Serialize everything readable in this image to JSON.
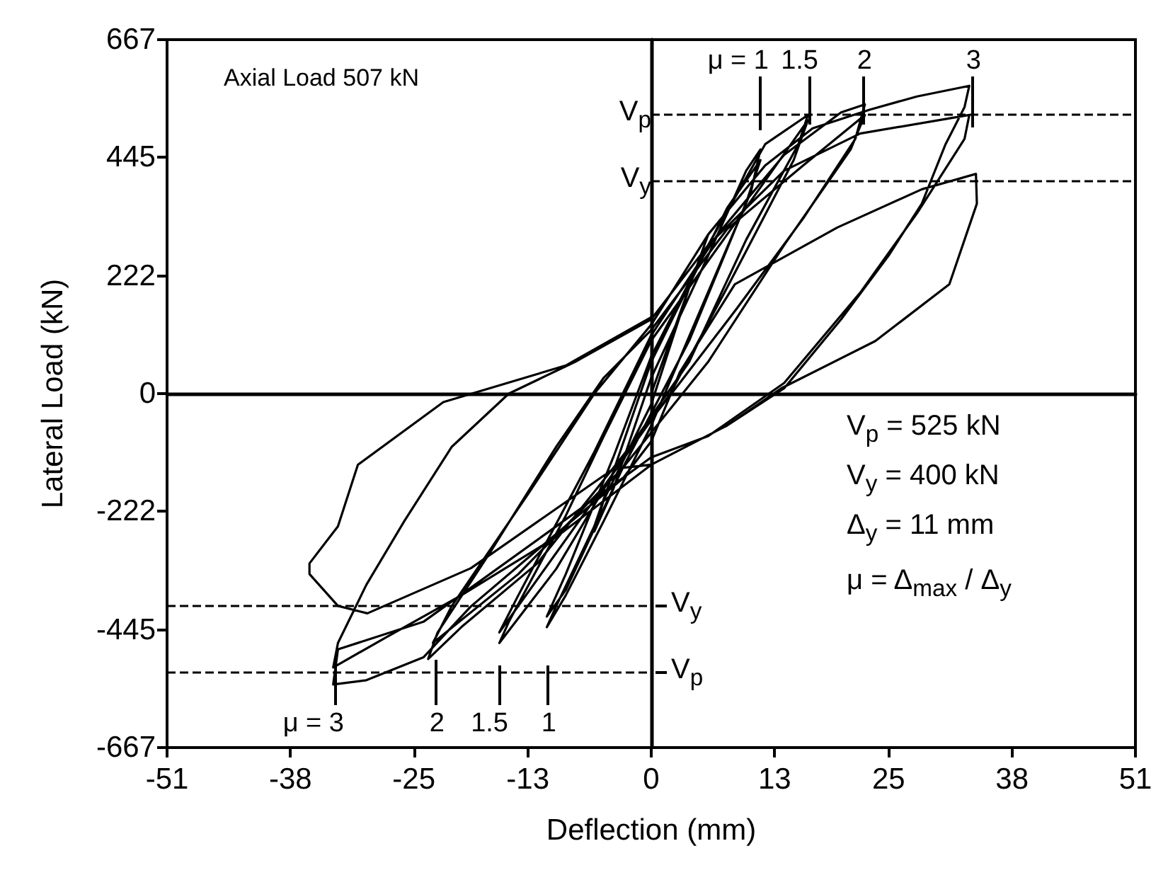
{
  "chart_data": {
    "type": "line",
    "xlabel": "Deflection (mm)",
    "ylabel": "Lateral Load (kN)",
    "xlim": [
      -51,
      51
    ],
    "xticks": [
      -51,
      -38,
      -25,
      -13,
      0,
      13,
      25,
      38,
      51
    ],
    "ylim": [
      -667,
      667
    ],
    "yticks": [
      -667,
      -445,
      -222,
      0,
      222,
      445,
      667
    ],
    "marker": "none",
    "line_style": "solid",
    "series": [
      {
        "color": "#000000",
        "x": [
          0,
          5,
          6,
          4,
          0,
          -5,
          -6,
          -4,
          0,
          6,
          10,
          11.5,
          10.5,
          5,
          0,
          -5,
          -9,
          -11,
          -10,
          -6,
          0,
          8,
          11.5,
          10,
          4,
          -3,
          -9,
          -11,
          -9,
          -4,
          0,
          6,
          12,
          16.5,
          15.5,
          10,
          4,
          -3,
          -10,
          -16,
          -15,
          -9,
          -5,
          0,
          8,
          16.5,
          15,
          8,
          2,
          -8,
          -16,
          -14,
          -6,
          0,
          7,
          14,
          20,
          22.5,
          21.5,
          16,
          9,
          3,
          -4,
          -12,
          -20,
          -23.5,
          -22.5,
          -17,
          -10,
          -5,
          0,
          8,
          16,
          22.5,
          21,
          14,
          6,
          -3,
          -14,
          -23,
          -21,
          -13,
          -6,
          0,
          6,
          12,
          17,
          23,
          28,
          33.5,
          33,
          31,
          28.5,
          25,
          20,
          14,
          8,
          0,
          -10,
          -20,
          -28,
          -33.5,
          -33,
          -30,
          -26,
          -21,
          -15,
          -8,
          0,
          6,
          14,
          22,
          33.5,
          33,
          28,
          22,
          14,
          6,
          0,
          -10,
          -24,
          -33,
          -33.5,
          -30,
          -24,
          -19,
          -9,
          -3,
          0,
          3,
          8.8,
          19.6,
          28.5,
          34.2,
          34.3,
          31.4,
          23.6,
          13.7,
          8,
          0,
          -4,
          -19,
          -29.9,
          -33,
          -36,
          -36,
          -33,
          -30.9,
          -21.9,
          -9,
          0
        ],
        "values": [
          0,
          250,
          300,
          200,
          -20,
          -200,
          -260,
          -180,
          30,
          260,
          420,
          460,
          380,
          150,
          -60,
          -240,
          -380,
          -440,
          -400,
          -250,
          60,
          350,
          440,
          360,
          100,
          -140,
          -370,
          -420,
          -340,
          -120,
          70,
          280,
          470,
          525,
          470,
          290,
          60,
          -120,
          -330,
          -470,
          -430,
          -230,
          -80,
          100,
          300,
          515,
          440,
          200,
          0,
          -250,
          -450,
          -380,
          -110,
          110,
          300,
          450,
          530,
          545,
          480,
          330,
          160,
          20,
          -140,
          -320,
          -440,
          -500,
          -450,
          -300,
          -100,
          30,
          120,
          310,
          430,
          525,
          460,
          280,
          60,
          -140,
          -340,
          -470,
          -400,
          -190,
          0,
          130,
          300,
          430,
          500,
          535,
          560,
          580,
          540,
          470,
          358,
          260,
          140,
          10,
          -60,
          -134,
          -270,
          -380,
          -460,
          -516,
          -470,
          -360,
          -240,
          -100,
          0,
          60,
          140,
          280,
          420,
          490,
          525,
          480,
          340,
          190,
          20,
          -80,
          -120,
          -250,
          -430,
          -482,
          -548,
          -540,
          -497,
          -401,
          -249,
          -160,
          -90,
          40,
          206,
          313,
          385,
          414,
          358,
          206,
          99,
          10,
          -60,
          -134,
          -142,
          -329,
          -414,
          -400,
          -340,
          -320,
          -250,
          -134,
          -16,
          53,
          144
        ]
      }
    ],
    "ref_lines": [
      {
        "axis": "y",
        "value": 525,
        "label": "V$_{p}$",
        "line_style": "dashed"
      },
      {
        "axis": "y",
        "value": 400,
        "label": "V$_{y}$",
        "line_style": "dashed"
      },
      {
        "axis": "y",
        "value": -400,
        "label": "V$_{y}$",
        "line_style": "dashed"
      },
      {
        "axis": "y",
        "value": -525,
        "label": "V$_{p}$",
        "line_style": "dashed"
      }
    ],
    "annotations": [
      "Axial Load 507 kN",
      "V$_{p}$ = 525 kN",
      "V$_{y}$ = 400 kN",
      "Δ$_{y}$ = 11 mm",
      "μ = Δ$_{max}$ / Δ$_{y}$",
      "μ = 1",
      "1.5",
      "2",
      "3",
      "μ = 3",
      "2",
      "1.5",
      "1"
    ]
  }
}
